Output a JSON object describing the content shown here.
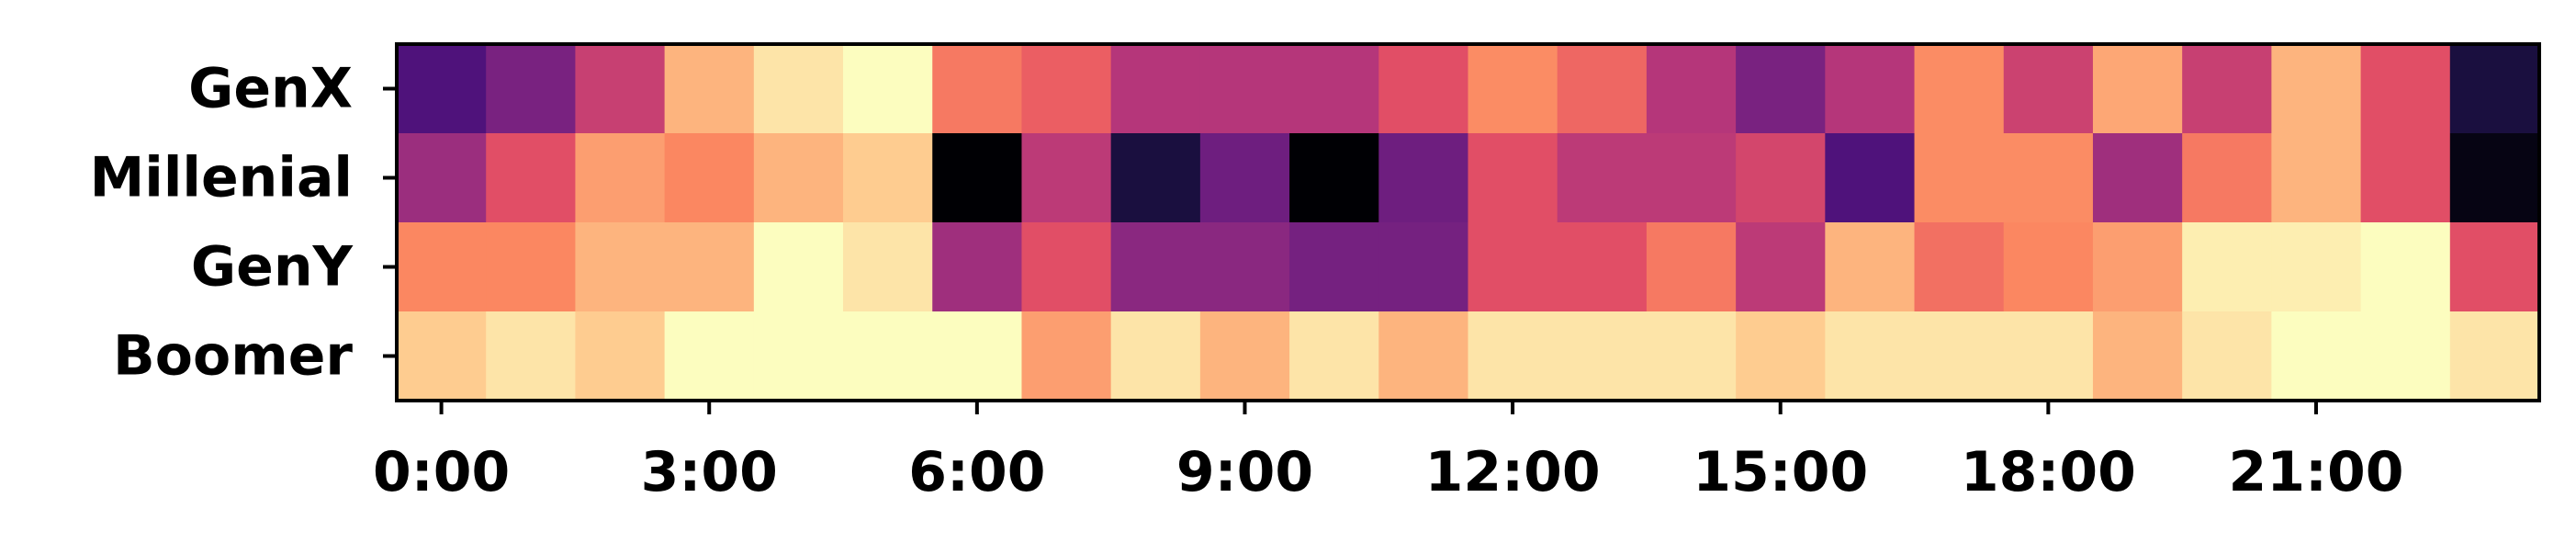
{
  "chart_data": {
    "type": "heatmap",
    "title": "",
    "xlabel": "",
    "ylabel": "",
    "colormap": "magma",
    "value_range": [
      0,
      1
    ],
    "rows": [
      "GenX",
      "Millenial",
      "GenY",
      "Boomer"
    ],
    "columns": [
      "0:00",
      "1:00",
      "2:00",
      "3:00",
      "4:00",
      "5:00",
      "6:00",
      "7:00",
      "8:00",
      "9:00",
      "10:00",
      "11:00",
      "12:00",
      "13:00",
      "14:00",
      "15:00",
      "16:00",
      "17:00",
      "18:00",
      "19:00",
      "20:00",
      "21:00",
      "22:00",
      "23:00"
    ],
    "x_tick_labels": [
      {
        "hour": 0,
        "label": "0:00"
      },
      {
        "hour": 3,
        "label": "3:00"
      },
      {
        "hour": 6,
        "label": "6:00"
      },
      {
        "hour": 9,
        "label": "9:00"
      },
      {
        "hour": 12,
        "label": "12:00"
      },
      {
        "hour": 15,
        "label": "15:00"
      },
      {
        "hour": 18,
        "label": "18:00"
      },
      {
        "hour": 21,
        "label": "21:00"
      }
    ],
    "values": [
      [
        0.25,
        0.36,
        0.55,
        0.85,
        0.95,
        1.0,
        0.72,
        0.66,
        0.5,
        0.5,
        0.5,
        0.62,
        0.76,
        0.68,
        0.5,
        0.36,
        0.5,
        0.76,
        0.56,
        0.82,
        0.55,
        0.85,
        0.62,
        0.12
      ],
      [
        0.44,
        0.62,
        0.8,
        0.75,
        0.85,
        0.9,
        0.0,
        0.52,
        0.12,
        0.33,
        0.0,
        0.33,
        0.62,
        0.52,
        0.52,
        0.58,
        0.25,
        0.76,
        0.76,
        0.45,
        0.72,
        0.85,
        0.62,
        0.03
      ],
      [
        0.75,
        0.75,
        0.85,
        0.85,
        1.0,
        0.95,
        0.45,
        0.62,
        0.4,
        0.4,
        0.35,
        0.35,
        0.62,
        0.62,
        0.72,
        0.52,
        0.85,
        0.7,
        0.75,
        0.8,
        0.97,
        0.97,
        1.0,
        0.62
      ],
      [
        0.9,
        0.95,
        0.9,
        1.0,
        1.0,
        1.0,
        1.0,
        0.8,
        0.95,
        0.85,
        0.95,
        0.85,
        0.95,
        0.95,
        0.95,
        0.9,
        0.95,
        0.95,
        0.95,
        0.85,
        0.95,
        1.0,
        1.0,
        0.95
      ]
    ]
  }
}
